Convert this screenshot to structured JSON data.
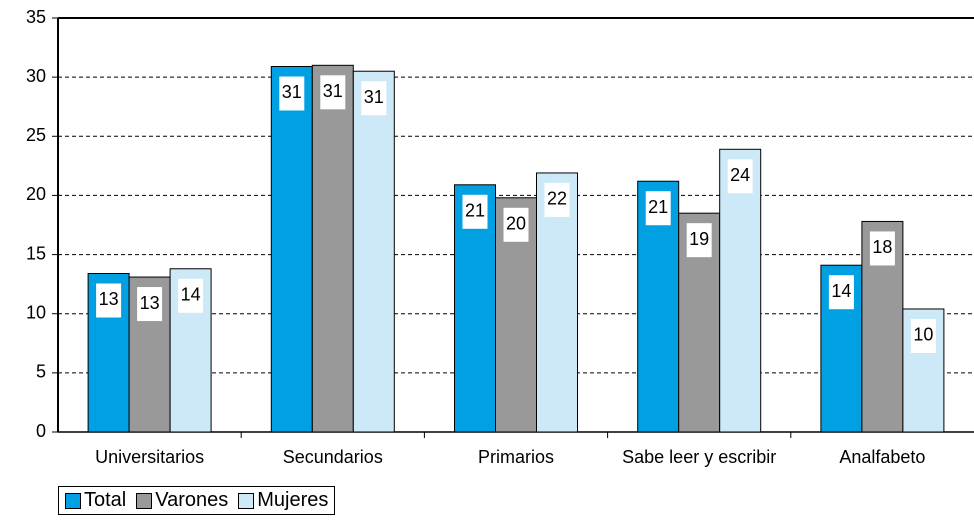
{
  "chart_data": {
    "type": "bar",
    "categories": [
      "Universitarios",
      "Secundarios",
      "Primarios",
      "Sabe leer y escribir",
      "Analfabeto"
    ],
    "series": [
      {
        "name": "Total",
        "color": "#00a0e3",
        "values": [
          13.4,
          30.9,
          20.9,
          21.2,
          14.1
        ],
        "value_labels": [
          "13",
          "31",
          "21",
          "21",
          "14"
        ]
      },
      {
        "name": "Varones",
        "color": "#999999",
        "values": [
          13.1,
          31.0,
          19.8,
          18.5,
          17.8
        ],
        "value_labels": [
          "13",
          "31",
          "20",
          "19",
          "18"
        ]
      },
      {
        "name": "Mujeres",
        "color": "#cde9f8",
        "values": [
          13.8,
          30.5,
          21.9,
          23.9,
          10.4
        ],
        "value_labels": [
          "14",
          "31",
          "22",
          "24",
          "10"
        ]
      }
    ],
    "ylim": [
      0,
      35
    ],
    "yticks": [
      0,
      5,
      10,
      15,
      20,
      25,
      30,
      35
    ],
    "grid": true,
    "legend": "bottom-left"
  }
}
